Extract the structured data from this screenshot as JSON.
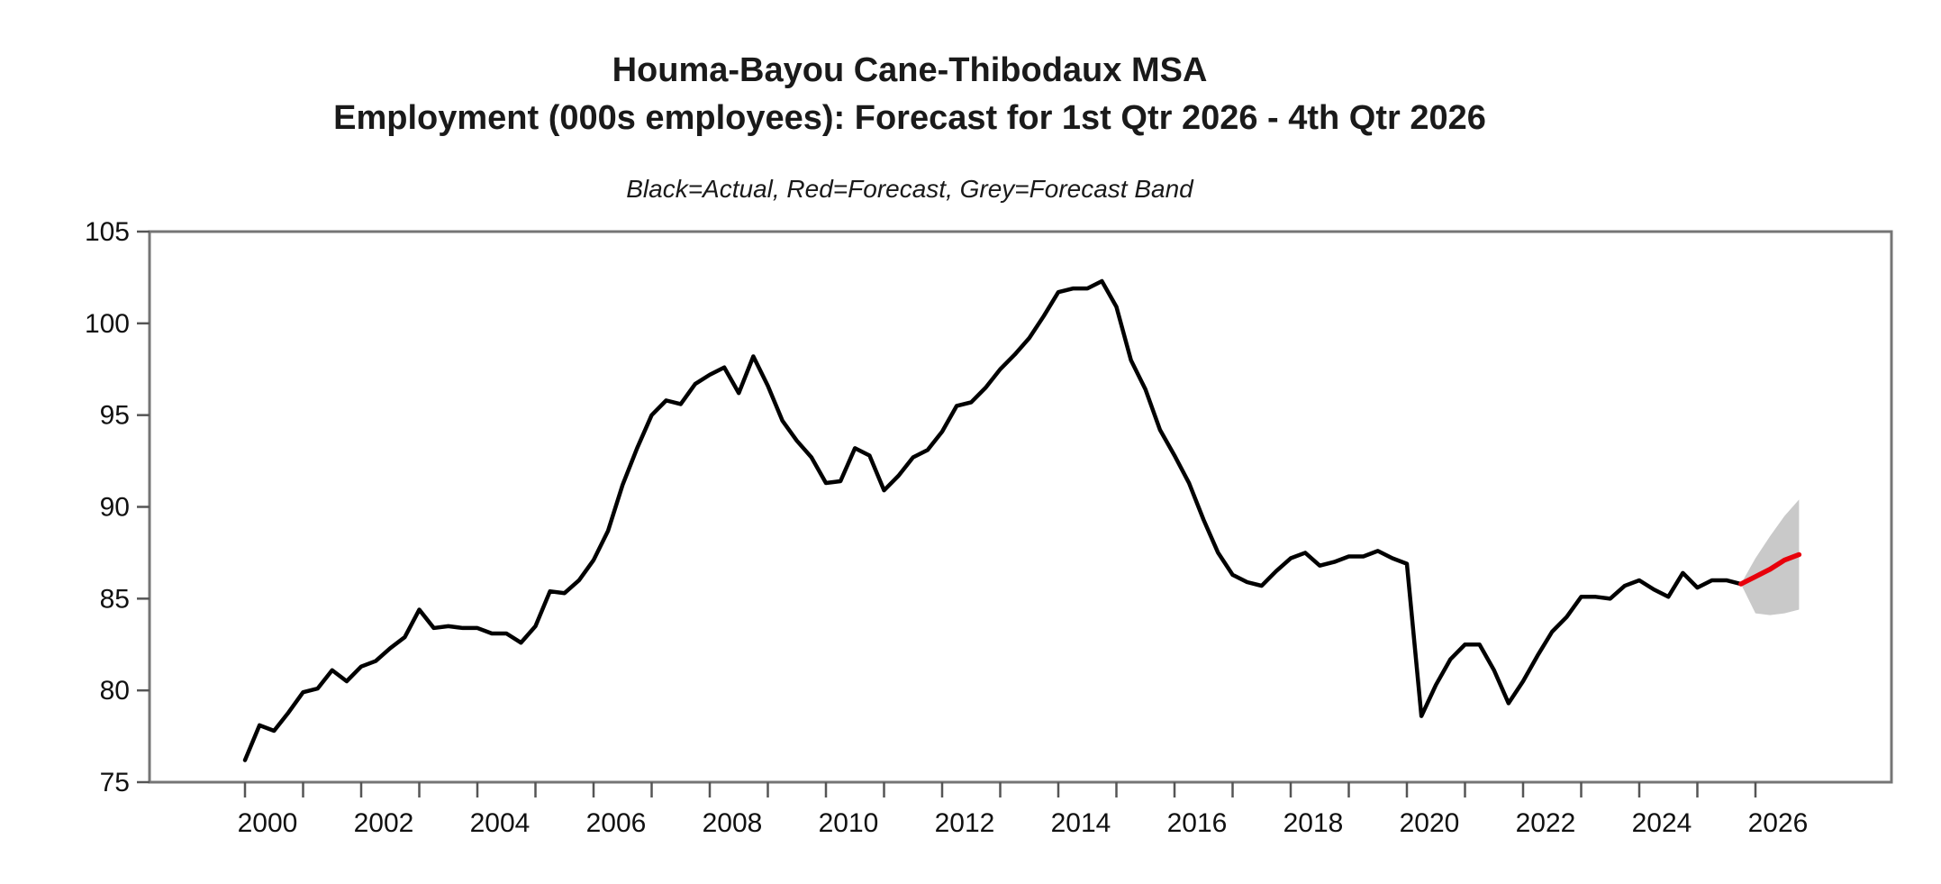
{
  "chart": {
    "title_line1": "Houma-Bayou Cane-Thibodaux MSA",
    "title_line2": "Employment (000s employees): Forecast for 1st Qtr 2026 - 4th Qtr 2026",
    "legend_note": "Black=Actual, Red=Forecast, Grey=Forecast Band"
  },
  "chart_data": {
    "type": "line",
    "title": "Houma-Bayou Cane-Thibodaux MSA",
    "subtitle": "Employment (000s employees): Forecast for 1st Qtr 2026 - 4th Qtr 2026",
    "legend_note": "Black=Actual, Red=Forecast, Grey=Forecast Band",
    "xlabel": "",
    "ylabel": "",
    "ylim": [
      75,
      105
    ],
    "xlim_years": [
      1998.4,
      2028.3
    ],
    "grid": false,
    "y_ticks": [
      75,
      80,
      85,
      90,
      95,
      100,
      105
    ],
    "x_tick_years_start": 2000,
    "x_tick_years_end": 2026,
    "x_label_years": [
      2000,
      2002,
      2004,
      2006,
      2008,
      2010,
      2012,
      2014,
      2016,
      2018,
      2020,
      2022,
      2024,
      2026
    ],
    "colors": {
      "actual": "#000000",
      "forecast": "#e8000b",
      "band": "#c9c9c9",
      "frame": "#757575",
      "tick": "#555555",
      "text": "#111111"
    },
    "series": [
      {
        "name": "Actual",
        "role": "actual",
        "start": "2000Q1",
        "frequency": "quarterly",
        "values": [
          76.2,
          78.1,
          77.8,
          78.8,
          79.9,
          80.1,
          81.1,
          80.5,
          81.3,
          81.6,
          82.3,
          82.9,
          84.4,
          83.4,
          83.5,
          83.4,
          83.4,
          83.1,
          83.1,
          82.6,
          83.5,
          85.4,
          85.3,
          86.0,
          87.1,
          88.7,
          91.2,
          93.2,
          95.0,
          95.8,
          95.6,
          96.7,
          97.2,
          97.6,
          96.2,
          98.2,
          96.6,
          94.7,
          93.6,
          92.7,
          91.3,
          91.4,
          93.2,
          92.8,
          90.9,
          91.7,
          92.7,
          93.1,
          94.1,
          95.5,
          95.7,
          96.5,
          97.5,
          98.3,
          99.2,
          100.4,
          101.7,
          101.9,
          101.9,
          102.3,
          100.9,
          98.0,
          96.4,
          94.2,
          92.8,
          91.3,
          89.3,
          87.5,
          86.3,
          85.9,
          85.7,
          86.5,
          87.2,
          87.5,
          86.8,
          87.0,
          87.3,
          87.3,
          87.6,
          87.2,
          86.9,
          78.6,
          80.3,
          81.7,
          82.5,
          82.5,
          81.1,
          79.3,
          80.5,
          81.9,
          83.2,
          84.0,
          85.1,
          85.1,
          85.0,
          85.7,
          86.0,
          85.5,
          85.1,
          86.4,
          85.6,
          86.0,
          86.0,
          85.8
        ]
      },
      {
        "name": "Forecast",
        "role": "forecast",
        "quarters": [
          "2025Q4",
          "2026Q1",
          "2026Q2",
          "2026Q3",
          "2026Q4"
        ],
        "values": [
          85.8,
          86.2,
          86.6,
          87.1,
          87.4
        ]
      },
      {
        "name": "Forecast Band",
        "role": "band",
        "quarters": [
          "2025Q4",
          "2026Q1",
          "2026Q2",
          "2026Q3",
          "2026Q4"
        ],
        "upper": [
          85.8,
          87.2,
          88.4,
          89.5,
          90.4
        ],
        "lower": [
          85.8,
          84.2,
          84.1,
          84.2,
          84.4
        ]
      }
    ]
  }
}
